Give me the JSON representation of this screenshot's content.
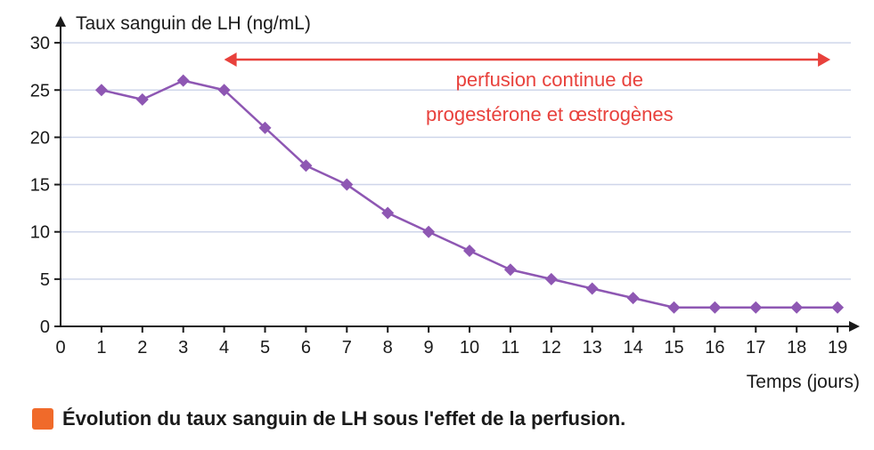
{
  "chart_data": {
    "type": "line",
    "ylabel": "Taux sanguin de LH (ng/mL)",
    "xlabel": "Temps (jours)",
    "x": [
      1,
      2,
      3,
      4,
      5,
      6,
      7,
      8,
      9,
      10,
      11,
      12,
      13,
      14,
      15,
      16,
      17,
      18,
      19
    ],
    "series": [
      {
        "values": [
          25,
          24,
          26,
          25,
          21,
          17,
          15,
          12,
          10,
          8,
          6,
          5,
          4,
          3,
          2,
          2,
          2,
          2,
          2
        ]
      }
    ],
    "xlim": [
      0,
      19
    ],
    "ylim": [
      0,
      30
    ],
    "xticks": [
      0,
      1,
      2,
      3,
      4,
      5,
      6,
      7,
      8,
      9,
      10,
      11,
      12,
      13,
      14,
      15,
      16,
      17,
      18,
      19
    ],
    "yticks": [
      0,
      5,
      10,
      15,
      20,
      25,
      30
    ],
    "grid": "horizontal",
    "annotation": {
      "line1": "perfusion continue de",
      "line2": "progestérone et œstrogènes",
      "x_start": 4,
      "x_end": 19
    },
    "colors": {
      "series": "#8e57b3",
      "annotation": "#e8413c",
      "grid": "#cfd6ea"
    }
  },
  "caption": "Évolution du taux sanguin de LH sous l'effet de la perfusion.",
  "caption_color": "#f06a2a"
}
